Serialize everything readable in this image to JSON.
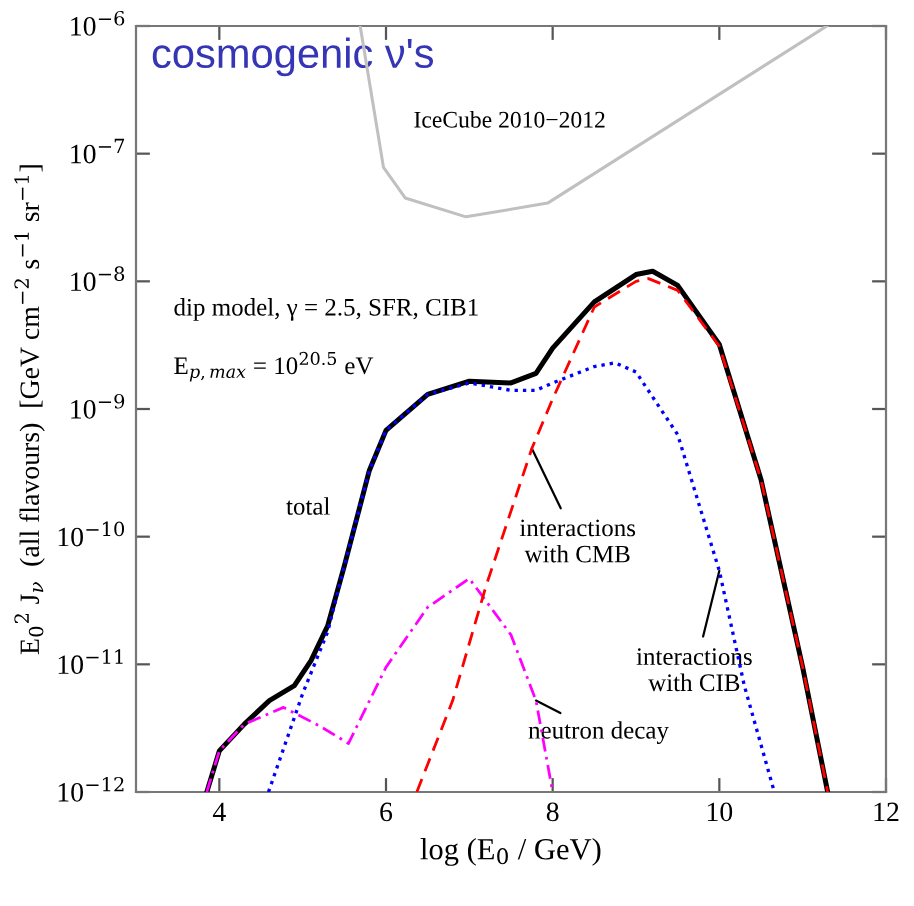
{
  "chart_data": {
    "type": "line",
    "title": "cosmogenic ν's",
    "xlabel": "log (E$_{0}$ / GeV)",
    "ylabel": "E$_{0}$$^{2}$ J$_{ν}$  (all flavours)  [GeV cm$^{−2}$ s$^{−1}$ sr$^{−1}$]",
    "log": "y",
    "grid": false,
    "xlim": [
      3,
      12
    ],
    "xticks": [
      4,
      6,
      8,
      10,
      12
    ],
    "ylim": [
      1e-12,
      1e-06
    ],
    "yticks": [
      {
        "value": 1e-12,
        "label": "10$^{−12}$"
      },
      {
        "value": 1e-11,
        "label": "10$^{−11}$"
      },
      {
        "value": 1e-10,
        "label": "10$^{−10}$"
      },
      {
        "value": 1e-09,
        "label": "10$^{−9}$"
      },
      {
        "value": 1e-08,
        "label": "10$^{−8}$"
      },
      {
        "value": 1e-07,
        "label": "10$^{−7}$"
      },
      {
        "value": 1e-06,
        "label": "10$^{−6}$"
      }
    ],
    "series": [
      {
        "color": "#c0c0c0",
        "line_style": "solid",
        "x": [
          5.69,
          5.97,
          6.23,
          6.96,
          7.94,
          11.29
        ],
        "values": [
          1e-06,
          7.8e-08,
          4.5e-08,
          3.2e-08,
          4.1e-08,
          1e-06
        ]
      },
      {
        "color": "#ff00ff",
        "line_style": "dashdot",
        "x": [
          3.85,
          4.0,
          4.3,
          4.77,
          5.2,
          5.55,
          6.0,
          6.5,
          7.0,
          7.5,
          7.8,
          8.0
        ],
        "values": [
          1e-12,
          2.1e-12,
          3.4e-12,
          4.6e-12,
          3.3e-12,
          2.4e-12,
          9.5e-12,
          2.8e-11,
          4.7e-11,
          1.7e-11,
          5.2e-12,
          1e-12
        ]
      },
      {
        "color": "#0000ff",
        "line_style": "dotted",
        "x": [
          4.59,
          5.0,
          5.3,
          5.5,
          5.8,
          6.0,
          6.5,
          7.0,
          7.5,
          7.8,
          8.0,
          8.5,
          8.75,
          9.0,
          9.5,
          10.0,
          10.3,
          10.66
        ],
        "values": [
          1e-12,
          5.9e-12,
          1.8e-11,
          5.9e-11,
          3.3e-10,
          6.8e-10,
          1.3e-09,
          1.6e-09,
          1.4e-09,
          1.4e-09,
          1.6e-09,
          2.15e-09,
          2.3e-09,
          1.95e-09,
          6.3e-10,
          5.4e-11,
          6.8e-12,
          1e-12
        ]
      },
      {
        "color": "#ff0000",
        "line_style": "dashed",
        "x": [
          6.37,
          6.8,
          7.2,
          7.75,
          8.0,
          8.5,
          9.0,
          9.15,
          9.5,
          10.0,
          10.5,
          11.0,
          11.3
        ],
        "values": [
          1e-12,
          5.2e-12,
          4.1e-11,
          4.9e-10,
          1.2e-09,
          6.3e-09,
          1e-08,
          1.05e-08,
          8.5e-09,
          3.1e-09,
          2.8e-10,
          9.5e-12,
          1e-12
        ]
      },
      {
        "color": "#000000",
        "line_style": "solid",
        "x": [
          3.85,
          4.0,
          4.3,
          4.6,
          4.9,
          5.1,
          5.3,
          5.5,
          5.8,
          6.0,
          6.5,
          7.0,
          7.5,
          7.8,
          8.0,
          8.5,
          9.0,
          9.2,
          9.5,
          10.0,
          10.5,
          11.0,
          11.3
        ],
        "values": [
          1e-12,
          2.1e-12,
          3.4e-12,
          5.2e-12,
          6.8e-12,
          1.07e-11,
          2e-11,
          5.9e-11,
          3.3e-10,
          6.8e-10,
          1.3e-09,
          1.65e-09,
          1.6e-09,
          1.9e-09,
          3e-09,
          6.9e-09,
          1.13e-08,
          1.2e-08,
          9.3e-09,
          3.2e-09,
          2.8e-10,
          9.5e-12,
          1e-12
        ]
      }
    ],
    "annotations": [
      "IceCube 2010−2012",
      "dip model, γ = 2.5, SFR, CIB1",
      "E$_{p,max}$ = 10$^{20.5}$ eV",
      "total",
      {
        "text": "interactions\nwith CMB",
        "x": 7.75,
        "y": 4.9e-10
      },
      {
        "text": "interactions\nwith CIB",
        "x": 10.0,
        "y": 5.4e-11
      },
      {
        "text": "neutron decay",
        "x": 7.8,
        "y": 5.2e-12
      }
    ]
  }
}
